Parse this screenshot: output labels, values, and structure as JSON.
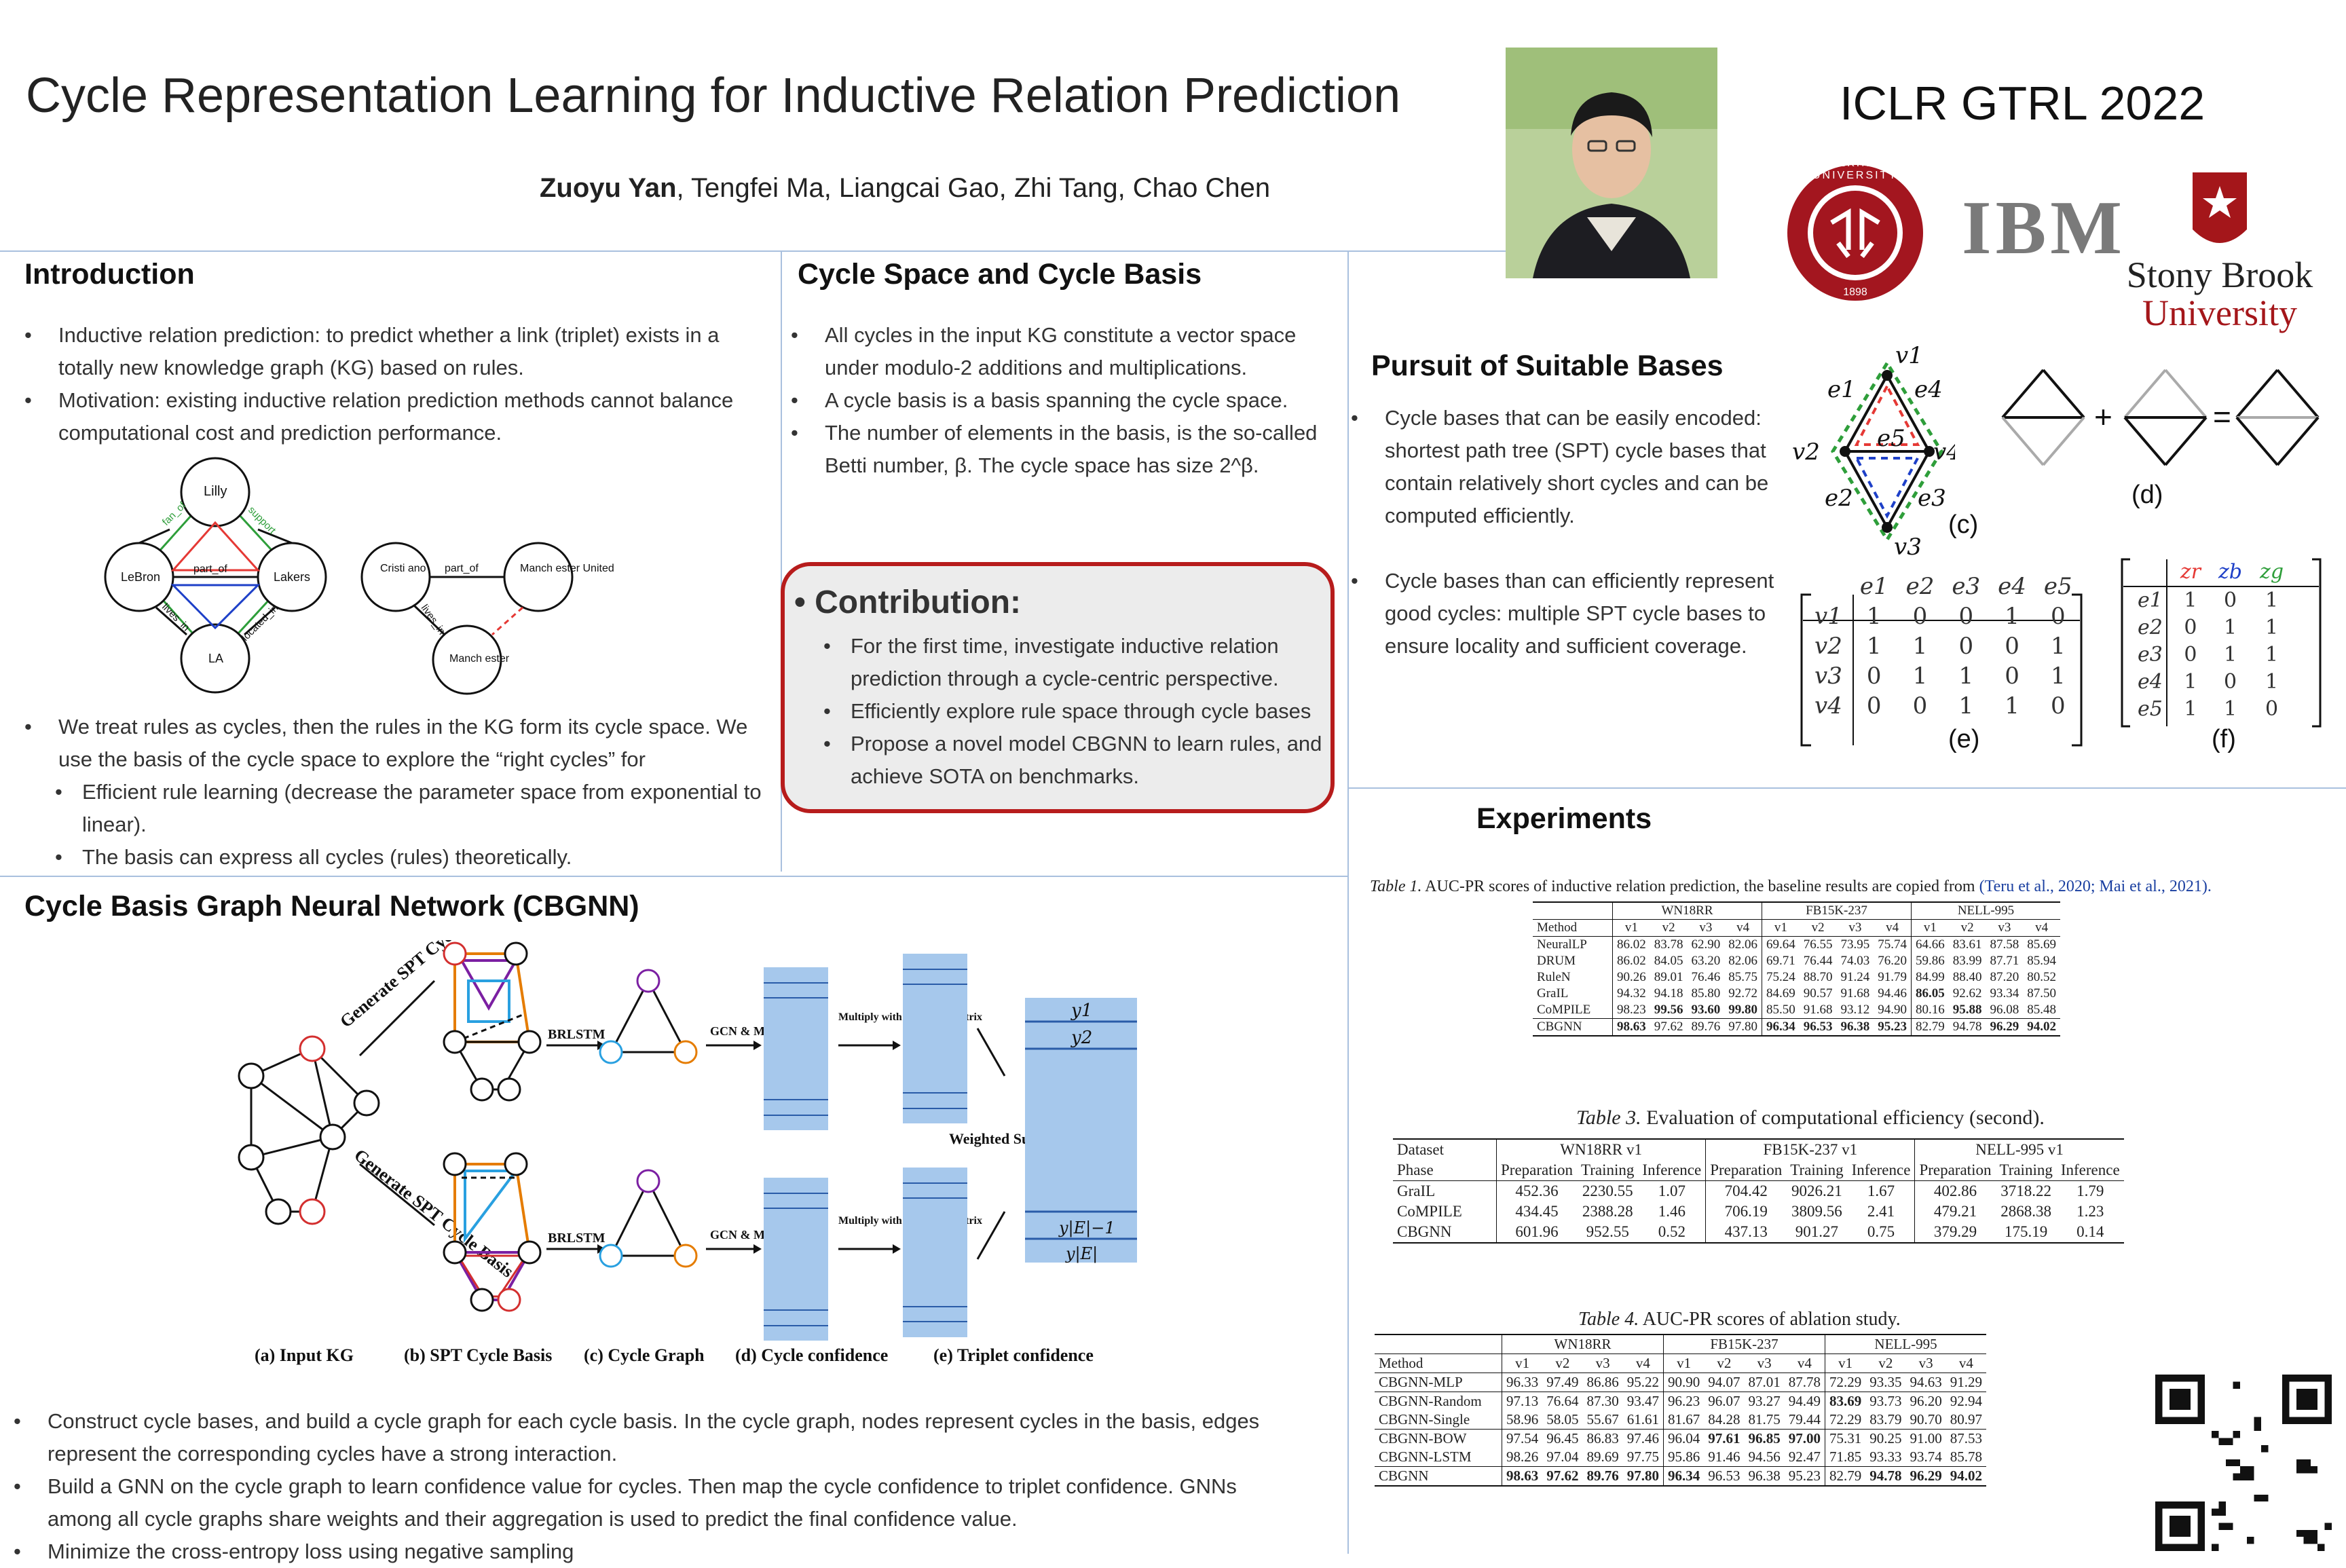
{
  "header": {
    "title": "Cycle Representation Learning for Inductive Relation Prediction",
    "author_bold": "Zuoyu Yan",
    "authors_rest": ", Tengfei Ma, Liangcai Gao, Zhi Tang, Chao Chen",
    "venue": "ICLR GTRL 2022"
  },
  "logos": {
    "pku_text": "PEKING UNIVERSITY",
    "pku_year": "1898",
    "ibm": "IBM",
    "stony1": "Stony Brook",
    "stony2": "University"
  },
  "intro": {
    "heading": "Introduction",
    "bullets": [
      "Inductive relation prediction: to predict whether a link (triplet) exists in a totally new knowledge graph (KG) based on rules.",
      "Motivation: existing inductive relation prediction methods cannot balance computational cost and prediction performance."
    ],
    "bullets2": [
      "We treat rules as cycles, then the rules in the KG form its cycle space. We use the basis of the cycle space to explore the “right cycles” for"
    ],
    "sub_bullets": [
      "Efficient rule learning (decrease the parameter space from exponential to linear).",
      "The basis can express all cycles (rules) theoretically."
    ],
    "kg_nodes": [
      "Lilly",
      "LeBron",
      "Lakers",
      "LA",
      "Cristi ano",
      "Manch ester United",
      "Manch ester"
    ],
    "kg_edges": [
      "fan_of",
      "support",
      "part_of",
      "lives_in",
      "located_in",
      "part_of",
      "lives_in"
    ]
  },
  "cycle_space": {
    "heading": "Cycle Space and Cycle Basis",
    "bullets": [
      "All cycles in the input KG constitute a vector space under modulo-2 additions and multiplications.",
      "A cycle basis is a basis spanning the cycle space.",
      "The number of elements in the basis, is the so-called Betti number, β. The cycle space has size 2^β."
    ]
  },
  "contribution": {
    "heading": "Contribution:",
    "bullets": [
      "For the first time, investigate inductive relation prediction through a cycle-centric perspective.",
      "Efficiently explore rule space through cycle bases",
      "Propose a novel model CBGNN to learn rules, and achieve SOTA on benchmarks."
    ]
  },
  "pursuit": {
    "heading": "Pursuit of Suitable Bases",
    "bullets": [
      "Cycle bases that can be easily encoded: shortest path tree (SPT) cycle bases that contain relatively short cycles and can be computed efficiently.",
      "Cycle bases than can efficiently represent good cycles: multiple SPT cycle bases to ensure locality and sufficient coverage."
    ],
    "fig_labels": [
      "(c)",
      "(d)",
      "(e)",
      "(f)"
    ],
    "graph_labels": [
      "v1",
      "v2",
      "v3",
      "v4",
      "e1",
      "e2",
      "e3",
      "e4",
      "e5"
    ],
    "matrix_e": {
      "cols": [
        "e1",
        "e2",
        "e3",
        "e4",
        "e5"
      ],
      "rows": [
        {
          "label": "v1",
          "vals": [
            "1",
            "0",
            "0",
            "1",
            "0"
          ]
        },
        {
          "label": "v2",
          "vals": [
            "1",
            "1",
            "0",
            "0",
            "1"
          ]
        },
        {
          "label": "v3",
          "vals": [
            "0",
            "1",
            "1",
            "0",
            "1"
          ]
        },
        {
          "label": "v4",
          "vals": [
            "0",
            "0",
            "1",
            "1",
            "0"
          ]
        }
      ]
    },
    "matrix_f": {
      "cols": [
        "zr",
        "zb",
        "zg"
      ],
      "col_colors": [
        "#e53935",
        "#1e40c8",
        "#2e9e3a"
      ],
      "rows": [
        {
          "label": "e1",
          "vals": [
            "1",
            "0",
            "1"
          ]
        },
        {
          "label": "e2",
          "vals": [
            "0",
            "1",
            "1"
          ]
        },
        {
          "label": "e3",
          "vals": [
            "0",
            "1",
            "1"
          ]
        },
        {
          "label": "e4",
          "vals": [
            "1",
            "0",
            "1"
          ]
        },
        {
          "label": "e5",
          "vals": [
            "1",
            "1",
            "0"
          ]
        }
      ]
    }
  },
  "cbgnn": {
    "heading": "Cycle Basis Graph Neural Network (CBGNN)",
    "fig_captions": [
      "(a) Input KG",
      "(b) SPT Cycle Basis",
      "(c) Cycle Graph",
      "(d) Cycle confidence",
      "(e) Triplet confidence"
    ],
    "fig_texts": {
      "gen": "Generate SPT Cycle Basis",
      "brlstm": "BRLSTM",
      "gcn": "GCN & MLP",
      "multiply": "Multiply with incidence matrix",
      "weighted": "Weighted Sum",
      "y1": "y1",
      "y2": "y2",
      "yE1": "y|E|−1",
      "yE": "y|E|"
    },
    "bullets": [
      "Construct cycle bases, and build a cycle graph for each cycle basis. In the cycle graph, nodes represent cycles in the basis, edges represent the corresponding cycles have a strong interaction.",
      "Build a GNN on the cycle graph to learn confidence value for cycles. Then map the cycle confidence to triplet confidence. GNNs among all cycle graphs share weights and their aggregation is used to predict the final confidence value.",
      "Minimize the cross-entropy loss using negative sampling"
    ]
  },
  "experiments": {
    "heading": "Experiments",
    "table1": {
      "caption_label": "Table 1.",
      "caption_text": "AUC-PR scores of inductive relation prediction, the baseline results are copied from",
      "caption_refs": "(Teru et al., 2020; Mai et al., 2021).",
      "groups": [
        "WN18RR",
        "FB15K-237",
        "NELL-995"
      ],
      "sub": [
        "v1",
        "v2",
        "v3",
        "v4"
      ],
      "method_label": "Method",
      "rows": [
        {
          "m": "NeuralLP",
          "v": [
            "86.02",
            "83.78",
            "62.90",
            "82.06",
            "69.64",
            "76.55",
            "73.95",
            "75.74",
            "64.66",
            "83.61",
            "87.58",
            "85.69"
          ]
        },
        {
          "m": "DRUM",
          "v": [
            "86.02",
            "84.05",
            "63.20",
            "82.06",
            "69.71",
            "76.44",
            "74.03",
            "76.20",
            "59.86",
            "83.99",
            "87.71",
            "85.94"
          ]
        },
        {
          "m": "RuleN",
          "v": [
            "90.26",
            "89.01",
            "76.46",
            "85.75",
            "75.24",
            "88.70",
            "91.24",
            "91.79",
            "84.99",
            "88.40",
            "87.20",
            "80.52"
          ]
        },
        {
          "m": "GraIL",
          "v": [
            "94.32",
            "94.18",
            "85.80",
            "92.72",
            "84.69",
            "90.57",
            "91.68",
            "94.46",
            "86.05",
            "92.62",
            "93.34",
            "87.50"
          ]
        },
        {
          "m": "CoMPILE",
          "v": [
            "98.23",
            "99.56",
            "93.60",
            "99.80",
            "85.50",
            "91.68",
            "93.12",
            "94.90",
            "80.16",
            "95.88",
            "96.08",
            "85.48"
          ]
        },
        {
          "m": "CBGNN",
          "v": [
            "98.63",
            "97.62",
            "89.76",
            "97.80",
            "96.34",
            "96.53",
            "96.38",
            "95.23",
            "82.79",
            "94.78",
            "96.29",
            "94.02"
          ]
        }
      ],
      "bold": [
        [
          3,
          8
        ],
        [
          4,
          1
        ],
        [
          4,
          2
        ],
        [
          4,
          3
        ],
        [
          4,
          9
        ],
        [
          5,
          0
        ],
        [
          5,
          4
        ],
        [
          5,
          5
        ],
        [
          5,
          6
        ],
        [
          5,
          7
        ],
        [
          5,
          10
        ],
        [
          5,
          11
        ]
      ]
    },
    "table3": {
      "caption_label": "Table 3.",
      "caption_text": "Evaluation of computational efficiency (second).",
      "dataset_label": "Dataset",
      "phase_label": "Phase",
      "groups": [
        "WN18RR v1",
        "FB15K-237 v1",
        "NELL-995 v1"
      ],
      "phases": [
        "Preparation",
        "Training",
        "Inference"
      ],
      "rows": [
        {
          "m": "GraIL",
          "v": [
            "452.36",
            "2230.55",
            "1.07",
            "704.42",
            "9026.21",
            "1.67",
            "402.86",
            "3718.22",
            "1.79"
          ]
        },
        {
          "m": "CoMPILE",
          "v": [
            "434.45",
            "2388.28",
            "1.46",
            "706.19",
            "3809.56",
            "2.41",
            "479.21",
            "2868.38",
            "1.23"
          ]
        },
        {
          "m": "CBGNN",
          "v": [
            "601.96",
            "952.55",
            "0.52",
            "437.13",
            "901.27",
            "0.75",
            "379.29",
            "175.19",
            "0.14"
          ]
        }
      ]
    },
    "table4": {
      "caption_label": "Table 4.",
      "caption_text": "AUC-PR scores of ablation study.",
      "groups": [
        "WN18RR",
        "FB15K-237",
        "NELL-995"
      ],
      "sub": [
        "v1",
        "v2",
        "v3",
        "v4"
      ],
      "method_label": "Method",
      "rows": [
        {
          "m": "CBGNN-MLP",
          "v": [
            "96.33",
            "97.49",
            "86.86",
            "95.22",
            "90.90",
            "94.07",
            "87.01",
            "87.78",
            "72.29",
            "93.35",
            "94.63",
            "91.29"
          ]
        },
        {
          "m": "CBGNN-Random",
          "v": [
            "97.13",
            "76.64",
            "87.30",
            "93.47",
            "96.23",
            "96.07",
            "93.27",
            "94.49",
            "83.69",
            "93.73",
            "96.20",
            "92.94"
          ]
        },
        {
          "m": "CBGNN-Single",
          "v": [
            "58.96",
            "58.05",
            "55.67",
            "61.61",
            "81.67",
            "84.28",
            "81.75",
            "79.44",
            "72.29",
            "83.79",
            "90.70",
            "80.97"
          ]
        },
        {
          "m": "CBGNN-BOW",
          "v": [
            "97.54",
            "96.45",
            "86.83",
            "97.46",
            "96.04",
            "97.61",
            "96.85",
            "97.00",
            "75.31",
            "90.25",
            "91.00",
            "87.53"
          ]
        },
        {
          "m": "CBGNN-LSTM",
          "v": [
            "98.26",
            "97.04",
            "89.69",
            "97.75",
            "95.86",
            "91.46",
            "94.56",
            "92.47",
            "71.85",
            "93.33",
            "93.74",
            "85.78"
          ]
        },
        {
          "m": "CBGNN",
          "v": [
            "98.63",
            "97.62",
            "89.76",
            "97.80",
            "96.34",
            "96.53",
            "96.38",
            "95.23",
            "82.79",
            "94.78",
            "96.29",
            "94.02"
          ]
        }
      ],
      "bold": [
        [
          1,
          8
        ],
        [
          3,
          5
        ],
        [
          3,
          6
        ],
        [
          3,
          7
        ],
        [
          5,
          0
        ],
        [
          5,
          1
        ],
        [
          5,
          2
        ],
        [
          5,
          3
        ],
        [
          5,
          4
        ],
        [
          5,
          9
        ],
        [
          5,
          10
        ],
        [
          5,
          11
        ]
      ]
    }
  }
}
